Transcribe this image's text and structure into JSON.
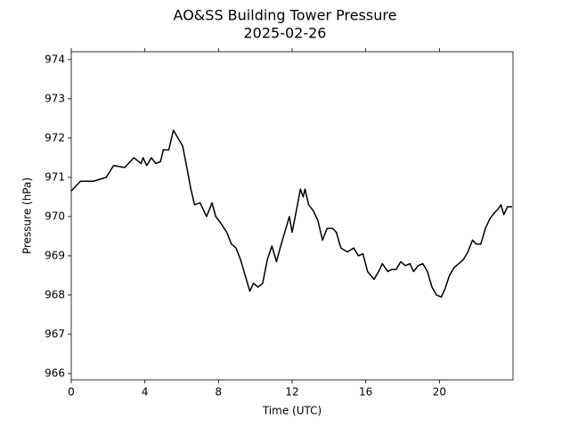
{
  "chart_data": {
    "type": "line",
    "title": "AO&SS Building Tower Pressure",
    "subtitle": "2025-02-26",
    "x_label": "Time (UTC)",
    "y_label": "Pressure (hPa)",
    "xlim": [
      0,
      24
    ],
    "ylim": [
      965.84,
      974.2
    ],
    "xticks": [
      0,
      4,
      8,
      12,
      16,
      20
    ],
    "yticks": [
      966,
      967,
      968,
      969,
      970,
      971,
      972,
      973,
      974
    ],
    "series": [
      {
        "name": "Pressure",
        "color": "#000000",
        "x": [
          0,
          0.5,
          1.2,
          1.9,
          2.3,
          2.9,
          3.4,
          3.8,
          3.9,
          4.1,
          4.35,
          4.6,
          4.85,
          5.0,
          5.3,
          5.55,
          5.8,
          6.05,
          6.3,
          6.5,
          6.7,
          7.0,
          7.35,
          7.65,
          7.85,
          8.1,
          8.45,
          8.7,
          8.95,
          9.2,
          9.45,
          9.7,
          9.9,
          10.15,
          10.4,
          10.65,
          10.9,
          11.15,
          11.35,
          11.6,
          11.85,
          12.0,
          12.25,
          12.45,
          12.6,
          12.7,
          12.9,
          13.15,
          13.4,
          13.65,
          13.9,
          14.2,
          14.4,
          14.65,
          15.0,
          15.35,
          15.6,
          15.85,
          16.1,
          16.45,
          16.7,
          16.9,
          17.2,
          17.4,
          17.65,
          17.9,
          18.15,
          18.4,
          18.6,
          18.85,
          19.1,
          19.35,
          19.6,
          19.85,
          20.1,
          20.3,
          20.55,
          20.8,
          21.05,
          21.3,
          21.55,
          21.8,
          22.0,
          22.25,
          22.5,
          22.75,
          23.0,
          23.2,
          23.35,
          23.5,
          23.7,
          23.95
        ],
        "values": [
          970.65,
          970.9,
          970.9,
          971.0,
          971.3,
          971.25,
          971.5,
          971.35,
          971.5,
          971.3,
          971.5,
          971.35,
          971.4,
          971.7,
          971.7,
          972.2,
          972.0,
          971.8,
          971.2,
          970.7,
          970.3,
          970.35,
          970.0,
          970.35,
          970.0,
          969.85,
          969.6,
          969.3,
          969.2,
          968.9,
          968.5,
          968.1,
          968.3,
          968.2,
          968.3,
          968.9,
          969.25,
          968.85,
          969.2,
          969.6,
          970.0,
          969.6,
          970.2,
          970.7,
          970.5,
          970.7,
          970.3,
          970.15,
          969.9,
          969.4,
          969.7,
          969.7,
          969.6,
          969.2,
          969.1,
          969.2,
          969.0,
          969.05,
          968.6,
          968.4,
          968.6,
          968.8,
          968.6,
          968.65,
          968.65,
          968.85,
          968.75,
          968.8,
          968.6,
          968.75,
          968.8,
          968.6,
          968.2,
          968.0,
          967.95,
          968.15,
          968.5,
          968.7,
          968.8,
          968.9,
          969.1,
          969.4,
          969.3,
          969.3,
          969.7,
          969.95,
          970.1,
          970.2,
          970.3,
          970.05,
          970.25,
          970.25
        ]
      }
    ]
  }
}
